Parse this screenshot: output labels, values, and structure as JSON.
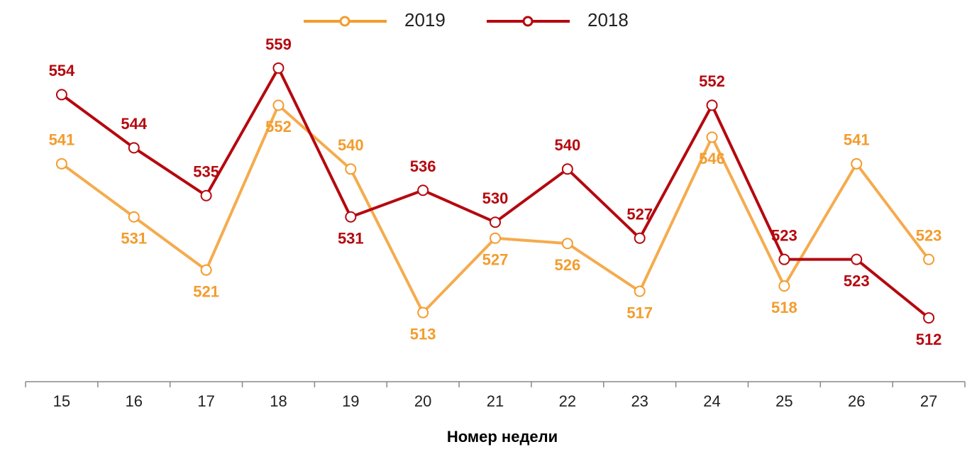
{
  "chart_data": {
    "type": "line",
    "xlabel": "Номер недели",
    "categories": [
      "15",
      "16",
      "17",
      "18",
      "19",
      "20",
      "21",
      "22",
      "23",
      "24",
      "25",
      "26",
      "27"
    ],
    "series": [
      {
        "name": "2019",
        "color": "#f39c2e",
        "values": [
          541,
          531,
          521,
          552,
          540,
          513,
          527,
          526,
          517,
          546,
          518,
          541,
          523
        ]
      },
      {
        "name": "2018",
        "color": "#b5090f",
        "values": [
          554,
          544,
          535,
          559,
          531,
          536,
          530,
          540,
          527,
          552,
          523,
          523,
          512
        ]
      }
    ],
    "ylim": [
      500,
      565
    ],
    "legend": "top"
  }
}
